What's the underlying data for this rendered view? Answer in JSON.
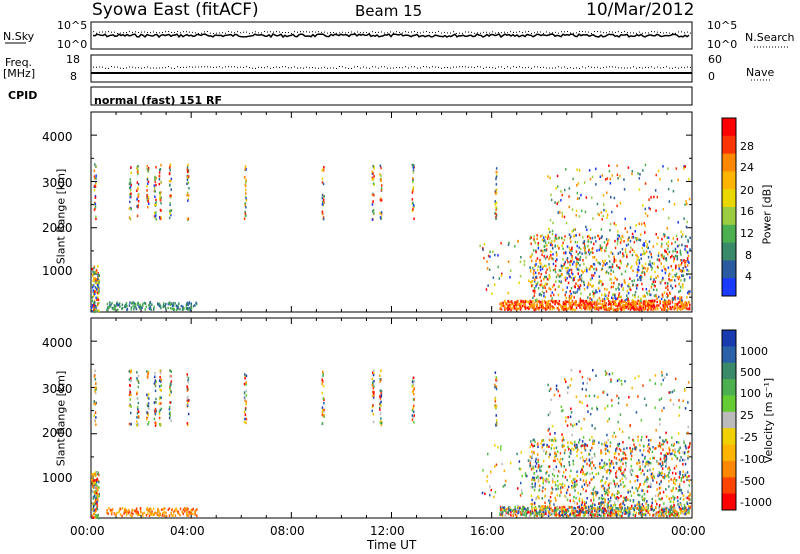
{
  "header": {
    "site": "Syowa East (fitACF)",
    "beam": "Beam 15",
    "date": "10/Mar/2012"
  },
  "sky_panel": {
    "left_label": "N.Sky",
    "right_label": "N.Search",
    "left_ticks": [
      "10^5",
      "10^0"
    ],
    "right_ticks": [
      "10^5",
      "10^0"
    ]
  },
  "freq_panel": {
    "left_label_top": "Freq.",
    "left_label_bottom": "[MHz]",
    "left_ticks": [
      "18",
      "8"
    ],
    "right_ticks": [
      "60",
      "0"
    ],
    "right_label": "Nave",
    "cpid_label": "CPID",
    "cpid_text": "normal (fast) 151 RF"
  },
  "chart_data": [
    {
      "type": "heatmap",
      "name": "power",
      "ylabel": "Slant Range [km]",
      "y_ticks": [
        "1000",
        "2000",
        "3000",
        "4000"
      ],
      "ylim": [
        180,
        4500
      ],
      "colorbar_label": "Power [dB]",
      "colorbar_ticks": [
        "28",
        "24",
        "20",
        "16",
        "12",
        "8",
        "4"
      ],
      "colorbar_colors": [
        "#ff0000",
        "#ff3300",
        "#ff8800",
        "#ffb400",
        "#e8d800",
        "#9ccc40",
        "#4cb050",
        "#3a8a6a",
        "#2a5aa0",
        "#1a3aff"
      ]
    },
    {
      "type": "heatmap",
      "name": "velocity",
      "ylabel": "Slant Range [km]",
      "y_ticks": [
        "1000",
        "2000",
        "3000",
        "4000"
      ],
      "ylim": [
        180,
        4500
      ],
      "xlabel": "Time UT",
      "x_ticks": [
        "00:00",
        "04:00",
        "08:00",
        "12:00",
        "16:00",
        "20:00",
        "00:00"
      ],
      "colorbar_label": "Velocity [m s⁻¹]",
      "colorbar_ticks": [
        "1000",
        "500",
        "100",
        "25",
        "-25",
        "-100",
        "-500",
        "-1000"
      ],
      "colorbar_colors": [
        "#1a3ab0",
        "#2a60a8",
        "#3a8a6a",
        "#4cb050",
        "#66cc33",
        "#bbbbbb",
        "#f0d000",
        "#ffb400",
        "#ff8800",
        "#ff4400",
        "#ff0000"
      ]
    }
  ]
}
